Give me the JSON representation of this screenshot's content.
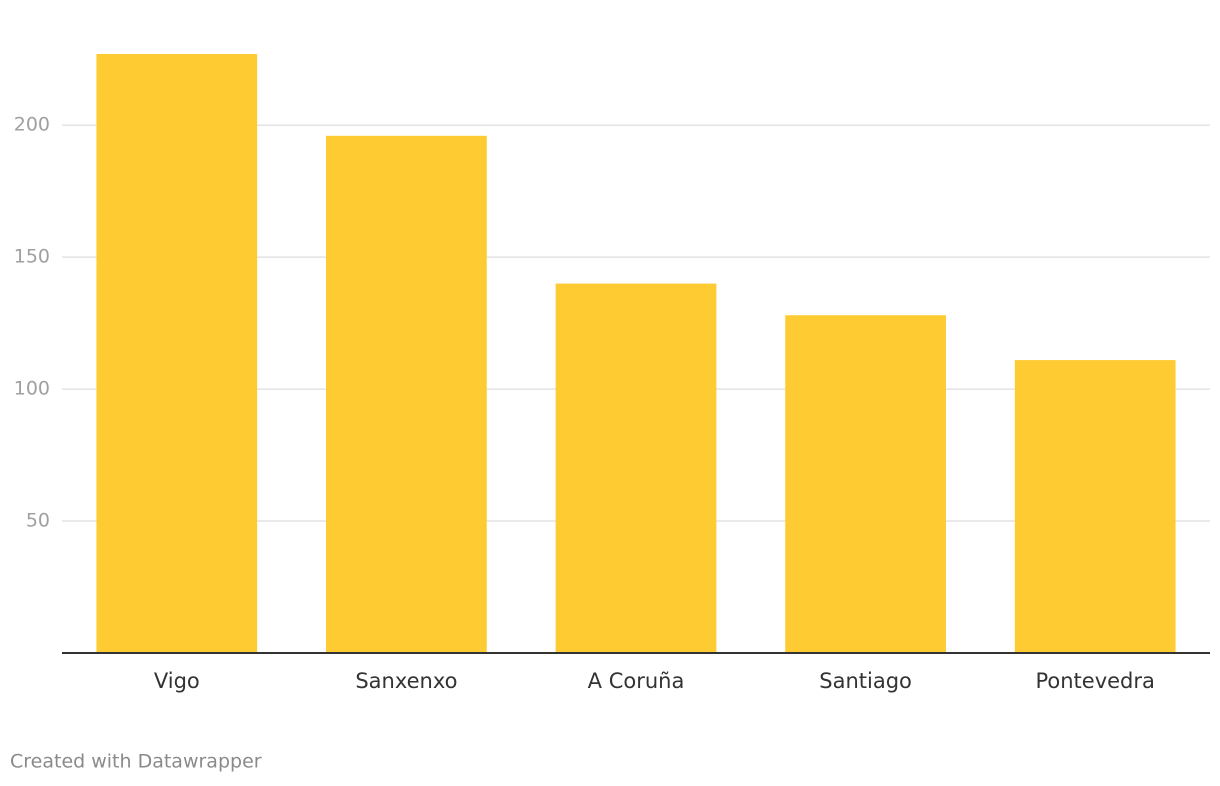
{
  "chart_data": {
    "type": "bar",
    "categories": [
      "Vigo",
      "Sanxenxo",
      "A Coruña",
      "Santiago",
      "Pontevedra"
    ],
    "values": [
      227,
      196,
      140,
      128,
      111
    ],
    "color": "#fecb33",
    "ylim": [
      0,
      227
    ],
    "yticks": [
      50,
      100,
      150,
      200
    ],
    "grid": true
  },
  "credit": "Created with Datawrapper"
}
